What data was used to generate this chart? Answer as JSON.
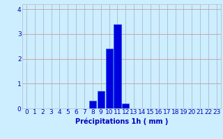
{
  "categories": [
    0,
    1,
    2,
    3,
    4,
    5,
    6,
    7,
    8,
    9,
    10,
    11,
    12,
    13,
    14,
    15,
    16,
    17,
    18,
    19,
    20,
    21,
    22,
    23
  ],
  "values": [
    0,
    0,
    0,
    0,
    0,
    0,
    0,
    0,
    0.3,
    0.7,
    2.4,
    3.4,
    0.2,
    0,
    0,
    0,
    0,
    0,
    0,
    0,
    0,
    0,
    0,
    0
  ],
  "bar_color": "#0000dd",
  "bar_edge_color": "#0044ff",
  "background_color": "#cceeff",
  "grid_color": "#aabbcc",
  "grid_red_color": "#cc9999",
  "xlabel": "Précipitations 1h ( mm )",
  "xlabel_color": "#0000bb",
  "tick_color": "#0000bb",
  "ylim": [
    0,
    4.2
  ],
  "yticks": [
    0,
    1,
    2,
    3,
    4
  ],
  "xlim": [
    -0.5,
    23.5
  ],
  "xlabel_fontsize": 7,
  "tick_fontsize": 6.5
}
